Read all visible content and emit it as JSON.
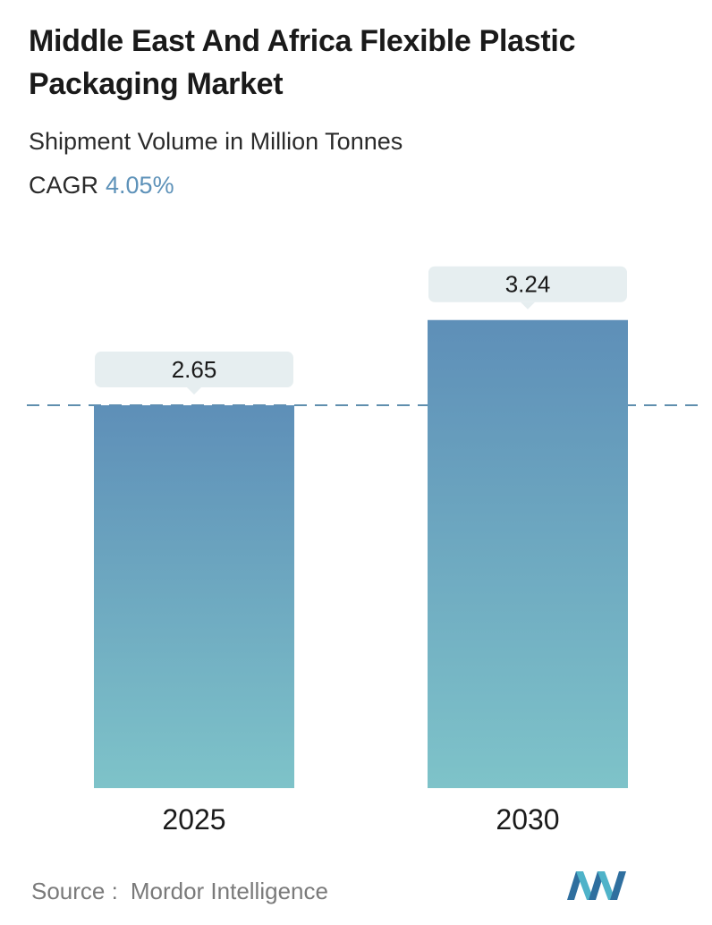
{
  "header": {
    "title": "Middle East And Africa Flexible Plastic Packaging Market",
    "subtitle": "Shipment Volume in Million Tonnes",
    "cagr_label": "CAGR",
    "cagr_value": "4.05%"
  },
  "chart_data": {
    "type": "bar",
    "title": "Middle East And Africa Flexible Plastic Packaging Market",
    "subtitle": "Shipment Volume in Million Tonnes",
    "categories": [
      "2025",
      "2030"
    ],
    "values": [
      2.65,
      3.24
    ],
    "value_labels": [
      "2.65",
      "3.24"
    ],
    "xlabel": "",
    "ylabel": "",
    "grid": false,
    "reference_line": 2.65,
    "colors": {
      "bar_top": "#5e8fb8",
      "bar_bottom": "#7ec3c9",
      "label_bg": "#e6eef0",
      "dashed_line": "#5f8fae",
      "cagr": "#5e92b9"
    }
  },
  "footer": {
    "source_label": "Source :",
    "source_value": "Mordor Intelligence",
    "logo": "mordor-intelligence-logo"
  }
}
